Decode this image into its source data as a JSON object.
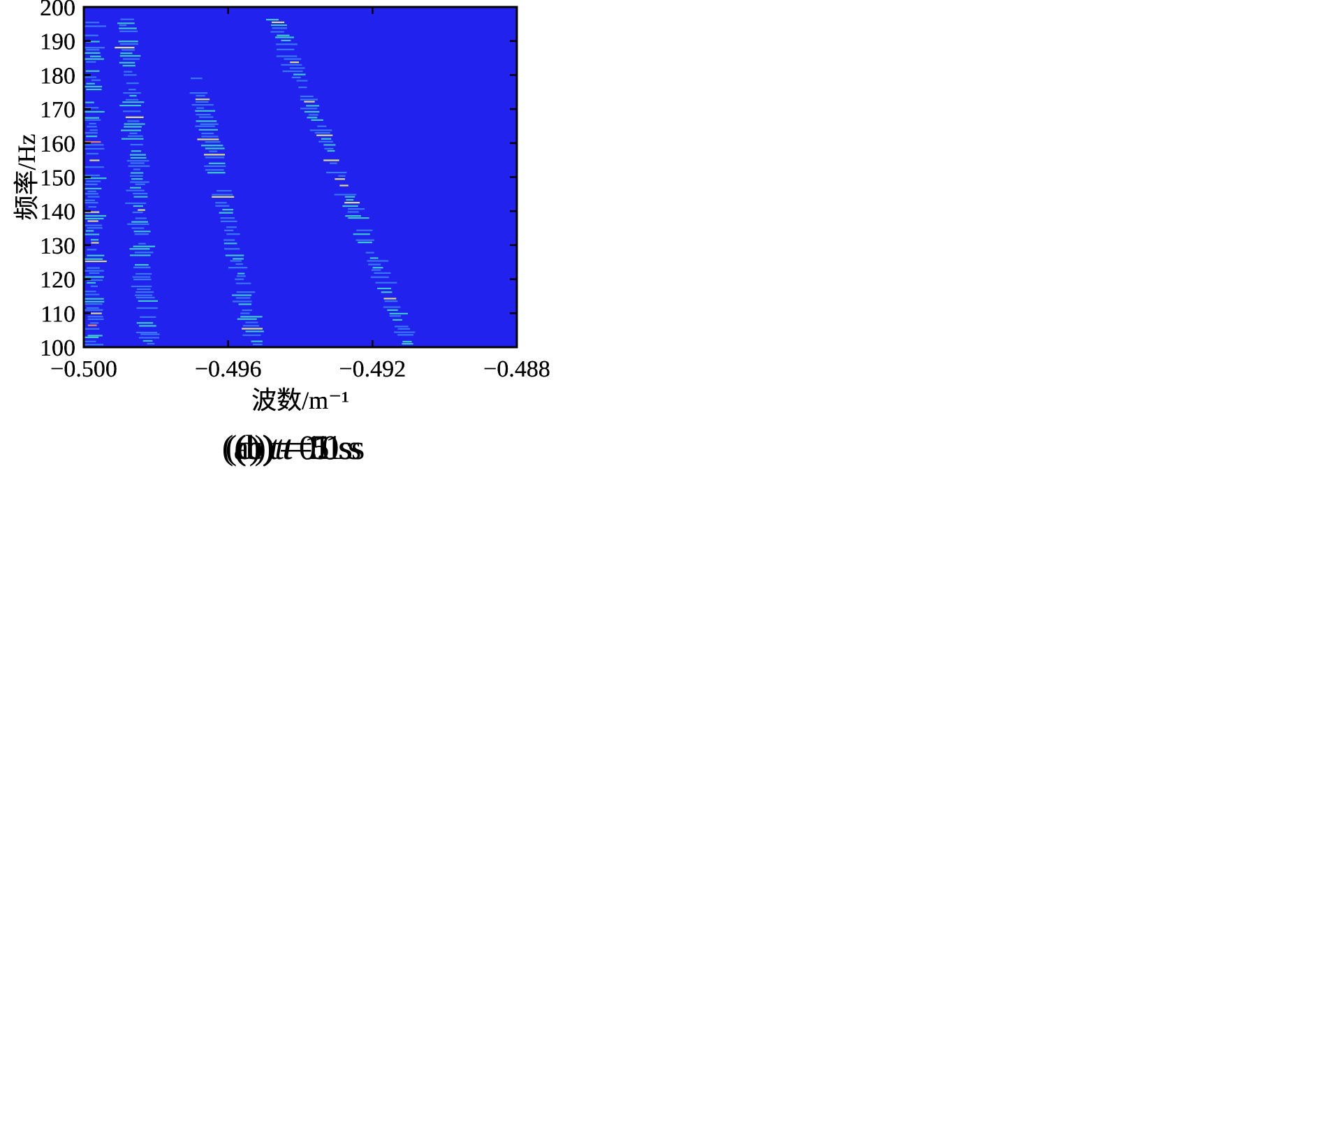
{
  "figure": {
    "colors": {
      "background": "#2222ee",
      "dash_low": "#3a7cf2",
      "dash_mid": "#3fd0c8",
      "dash_high": "#e8e87a",
      "dash_peak": "#f08a5a",
      "axis": "#000000"
    }
  },
  "chart_data": [
    {
      "type": "heatmap",
      "id": "a",
      "caption": {
        "prefix": "(a) ",
        "var": "t",
        "rest": "=0.1 s"
      },
      "xlabel": "波数/m⁻¹",
      "ylabel": "频率/Hz",
      "xlim": [
        -0.5,
        -0.488
      ],
      "ylim": [
        100,
        200
      ],
      "x_ticks": [
        -0.5,
        -0.496,
        -0.492,
        -0.488
      ],
      "x_tick_labels": [
        "−0.500",
        "−0.496",
        "−0.492",
        "−0.488"
      ],
      "y_ticks": [
        100,
        110,
        120,
        130,
        140,
        150,
        160,
        170,
        180,
        190,
        200
      ],
      "y_tick_labels": [
        "100",
        "110",
        "120",
        "130",
        "140",
        "150",
        "160",
        "170",
        "180",
        "190",
        "200"
      ],
      "dispersion_ridges": [
        {
          "points": [
            [
              -0.49975,
              100
            ],
            [
              -0.49975,
              197
            ]
          ]
        },
        {
          "points": [
            [
              -0.49815,
              100
            ],
            [
              -0.49875,
              197
            ]
          ]
        },
        {
          "points": [
            [
              -0.49525,
              100
            ],
            [
              -0.49715,
              185
            ]
          ]
        },
        {
          "points": [
            [
              -0.49105,
              100
            ],
            [
              -0.49495,
              197
            ]
          ]
        }
      ],
      "style": "diffuse"
    },
    {
      "type": "heatmap",
      "id": "b",
      "caption": {
        "prefix": "(b) ",
        "var": "t",
        "rest": "=1 s"
      },
      "xlabel": "波数/m⁻¹",
      "ylabel": "频率/Hz",
      "xlim": [
        -0.5,
        -0.488
      ],
      "ylim": [
        100,
        200
      ],
      "x_ticks": [
        -0.5,
        -0.496,
        -0.492,
        -0.488
      ],
      "x_tick_labels": [
        "−0.500",
        "−0.496",
        "−0.492",
        "−0.488"
      ],
      "y_ticks": [
        100,
        110,
        120,
        130,
        140,
        150,
        160,
        170,
        180,
        190,
        200
      ],
      "y_tick_labels": [
        "100",
        "110",
        "120",
        "130",
        "140",
        "150",
        "160",
        "170",
        "180",
        "190",
        "200"
      ],
      "dispersion_ridges": [
        {
          "points": [
            [
              -0.49975,
              100
            ],
            [
              -0.49975,
              197
            ]
          ]
        },
        {
          "points": [
            [
              -0.4982,
              100
            ],
            [
              -0.49885,
              197
            ]
          ]
        },
        {
          "points": [
            [
              -0.49525,
              100
            ],
            [
              -0.4969,
              180
            ]
          ]
        },
        {
          "points": [
            [
              -0.49095,
              100
            ],
            [
              -0.49475,
              197
            ]
          ]
        }
      ],
      "style": "sharp"
    },
    {
      "type": "heatmap",
      "id": "c",
      "caption": {
        "prefix": "(c) ",
        "var": "t",
        "rest": "=5 s"
      },
      "xlabel": "波数/m⁻¹",
      "ylabel": "频率/Hz",
      "xlim": [
        -0.5,
        -0.488
      ],
      "ylim": [
        100,
        200
      ],
      "x_ticks": [
        -0.5,
        -0.496,
        -0.492,
        -0.488
      ],
      "x_tick_labels": [
        "−0.500",
        "−0.496",
        "−0.492",
        "−0.488"
      ],
      "y_ticks": [
        100,
        110,
        120,
        130,
        140,
        150,
        160,
        170,
        180,
        190,
        200
      ],
      "y_tick_labels": [
        "100",
        "110",
        "120",
        "130",
        "140",
        "150",
        "160",
        "170",
        "180",
        "190",
        "200"
      ],
      "dispersion_ridges": [
        {
          "points": [
            [
              -0.49975,
              100
            ],
            [
              -0.49975,
              197
            ]
          ]
        },
        {
          "points": [
            [
              -0.4982,
              100
            ],
            [
              -0.49885,
              197
            ]
          ]
        },
        {
          "points": [
            [
              -0.49525,
              100
            ],
            [
              -0.4969,
              180
            ]
          ]
        },
        {
          "points": [
            [
              -0.49095,
              100
            ],
            [
              -0.49475,
              197
            ]
          ]
        }
      ],
      "style": "sharp"
    },
    {
      "type": "heatmap",
      "id": "d",
      "caption": {
        "prefix": "(d) ",
        "var": "t",
        "rest": "=10 s"
      },
      "xlabel": "波数/m⁻¹",
      "ylabel": "频率/Hz",
      "xlim": [
        -0.5,
        -0.488
      ],
      "ylim": [
        100,
        200
      ],
      "x_ticks": [
        -0.5,
        -0.496,
        -0.492,
        -0.488
      ],
      "x_tick_labels": [
        "−0.500",
        "−0.496",
        "−0.492",
        "−0.488"
      ],
      "y_ticks": [
        100,
        110,
        120,
        130,
        140,
        150,
        160,
        170,
        180,
        190,
        200
      ],
      "y_tick_labels": [
        "100",
        "110",
        "120",
        "130",
        "140",
        "150",
        "160",
        "170",
        "180",
        "190",
        "200"
      ],
      "dispersion_ridges": [
        {
          "points": [
            [
              -0.49975,
              100
            ],
            [
              -0.49975,
              197
            ]
          ]
        },
        {
          "points": [
            [
              -0.4982,
              100
            ],
            [
              -0.49885,
              197
            ]
          ]
        },
        {
          "points": [
            [
              -0.49525,
              100
            ],
            [
              -0.4969,
              180
            ]
          ]
        },
        {
          "points": [
            [
              -0.49095,
              100
            ],
            [
              -0.49475,
              197
            ]
          ]
        }
      ],
      "style": "sharp"
    }
  ]
}
